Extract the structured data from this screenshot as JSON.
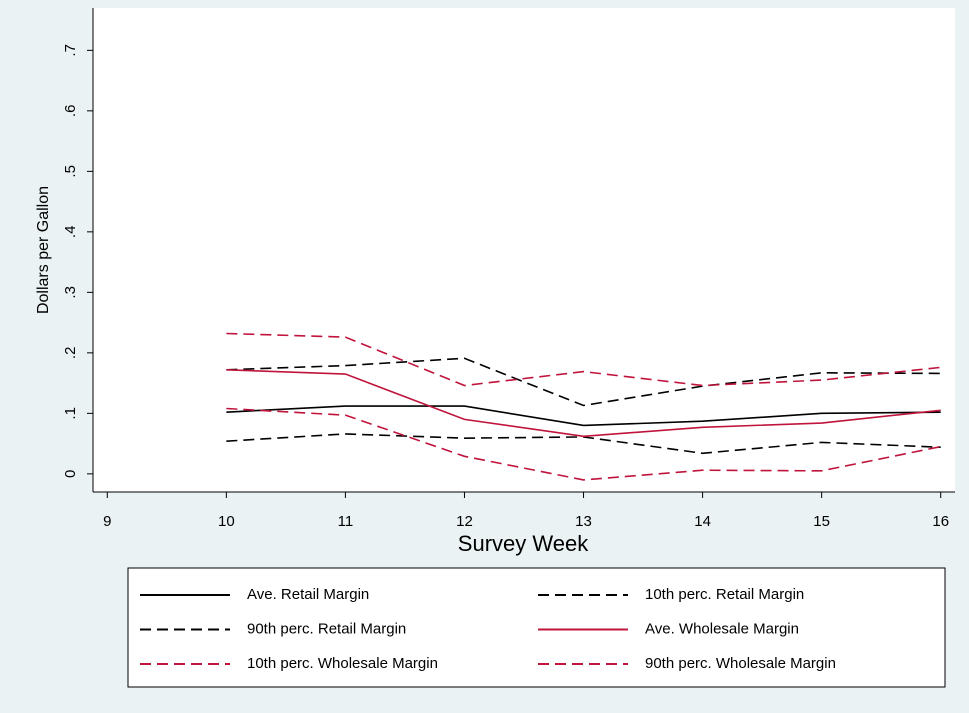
{
  "chart_data": {
    "type": "line",
    "y_label": "Dollars per Gallon",
    "x_label": "Survey Week",
    "x": [
      10,
      11,
      12,
      13,
      14,
      15,
      16
    ],
    "xlim": [
      8.88,
      16.12
    ],
    "xticks": [
      9,
      10,
      11,
      12,
      13,
      14,
      15,
      16
    ],
    "ylim": [
      -0.03,
      0.77
    ],
    "yticks": [
      0,
      {
        "value": 0.1,
        "label": ".1"
      },
      {
        "value": 0.2,
        "label": ".2"
      },
      {
        "value": 0.3,
        "label": ".3"
      },
      {
        "value": 0.4,
        "label": ".4"
      },
      {
        "value": 0.5,
        "label": ".5"
      },
      {
        "value": 0.6,
        "label": ".6"
      },
      {
        "value": 0.7,
        "label": ".7"
      }
    ],
    "series": [
      {
        "name": "Ave. Retail Margin",
        "color": "#000000",
        "dashed": false,
        "values": [
          0.102,
          0.112,
          0.112,
          0.08,
          0.087,
          0.1,
          0.102
        ]
      },
      {
        "name": "10th perc. Retail Margin",
        "color": "#000000",
        "dashed": true,
        "values": [
          0.054,
          0.066,
          0.059,
          0.061,
          0.034,
          0.052,
          0.044
        ]
      },
      {
        "name": "90th perc. Retail Margin",
        "color": "#000000",
        "dashed": true,
        "values": [
          0.172,
          0.179,
          0.191,
          0.113,
          0.145,
          0.167,
          0.166
        ]
      },
      {
        "name": "Ave. Wholesale Margin",
        "color": "#c0143c",
        "dashed": false,
        "values": [
          0.172,
          0.165,
          0.09,
          0.062,
          0.077,
          0.084,
          0.105
        ]
      },
      {
        "name": "10th perc. Wholesale Margin",
        "color": "#c0143c",
        "dashed": true,
        "values": [
          0.108,
          0.097,
          0.029,
          -0.01,
          0.006,
          0.005,
          0.045
        ]
      },
      {
        "name": "90th perc. Wholesale Margin",
        "color": "#c0143c",
        "dashed": true,
        "values": [
          0.232,
          0.226,
          0.146,
          0.169,
          0.146,
          0.155,
          0.176
        ]
      }
    ]
  }
}
